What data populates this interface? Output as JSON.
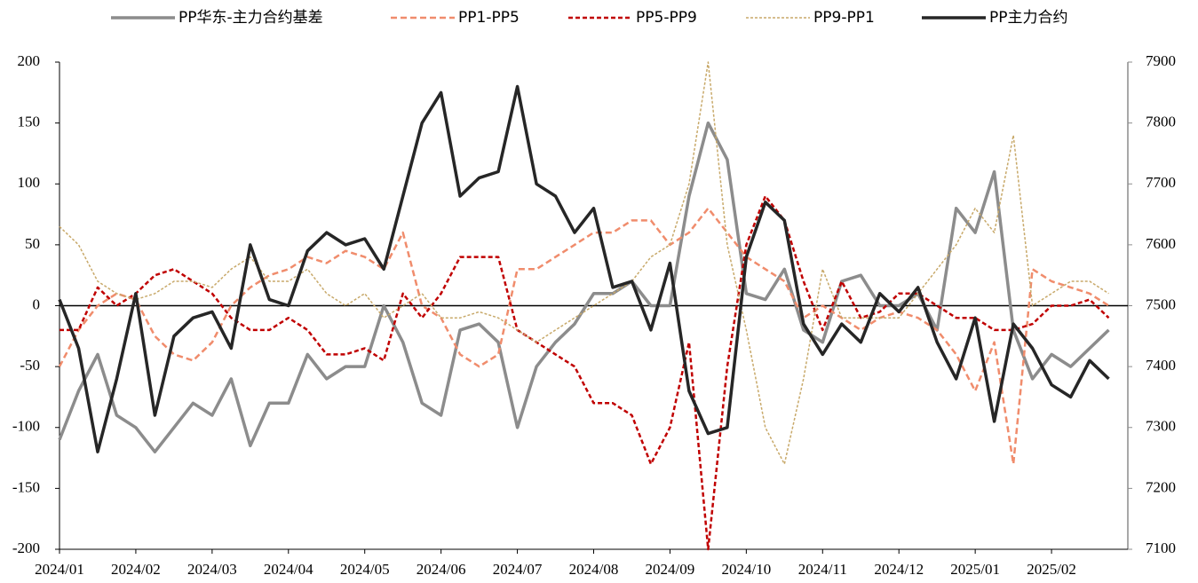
{
  "chart_data": {
    "type": "line",
    "legend": "top",
    "categories": [
      "2024/01",
      null,
      null,
      null,
      "2024/02",
      null,
      null,
      null,
      "2024/03",
      null,
      null,
      null,
      "2024/04",
      null,
      null,
      null,
      "2024/05",
      null,
      null,
      null,
      "2024/06",
      null,
      null,
      null,
      "2024/07",
      null,
      null,
      null,
      "2024/08",
      null,
      null,
      null,
      "2024/09",
      null,
      null,
      null,
      "2024/10",
      null,
      null,
      null,
      "2024/11",
      null,
      null,
      null,
      "2024/12",
      null,
      null,
      null,
      "2025/01",
      null,
      null,
      null,
      "2025/02",
      null,
      null,
      null
    ],
    "ylim": [
      -200,
      200
    ],
    "yticks": [
      -200,
      -150,
      -100,
      -50,
      0,
      50,
      100,
      150,
      200
    ],
    "y2lim": [
      7100,
      7900
    ],
    "y2ticks": [
      7100,
      7200,
      7300,
      7400,
      7500,
      7600,
      7700,
      7800,
      7900
    ],
    "series": [
      {
        "name": "PP华东-主力合约基差",
        "color": "#8c8c8c",
        "dash": "none",
        "width": 3.5,
        "values": [
          -110,
          -70,
          -40,
          -90,
          -100,
          -120,
          -100,
          -80,
          -90,
          -60,
          -115,
          -80,
          -80,
          -40,
          -60,
          -50,
          -50,
          0,
          -30,
          -80,
          -90,
          -20,
          -15,
          -30,
          -100,
          -50,
          -30,
          -15,
          10,
          10,
          20,
          0,
          0,
          90,
          150,
          120,
          10,
          5,
          30,
          -20,
          -30,
          20,
          25,
          0,
          0,
          10,
          -20,
          80,
          60,
          110,
          -20,
          -60,
          -40,
          -50,
          -35,
          -20
        ]
      },
      {
        "name": "PP1-PP5",
        "color": "#f08c6c",
        "dash": "7,4",
        "width": 2.5,
        "values": [
          -50,
          -20,
          0,
          10,
          5,
          -25,
          -40,
          -45,
          -30,
          0,
          15,
          25,
          30,
          40,
          35,
          45,
          40,
          30,
          60,
          0,
          -10,
          -40,
          -50,
          -40,
          30,
          30,
          40,
          50,
          60,
          60,
          70,
          70,
          50,
          60,
          80,
          60,
          40,
          30,
          20,
          -10,
          0,
          -10,
          -20,
          -10,
          -5,
          -10,
          -20,
          -40,
          -70,
          -30,
          -130,
          30,
          20,
          15,
          10,
          0
        ]
      },
      {
        "name": "PP5-PP9",
        "color": "#c00000",
        "dash": "5,3",
        "width": 2.5,
        "values": [
          -20,
          -20,
          15,
          0,
          10,
          25,
          30,
          20,
          10,
          -10,
          -20,
          -20,
          -10,
          -20,
          -40,
          -40,
          -35,
          -45,
          10,
          -10,
          10,
          40,
          40,
          40,
          -20,
          -30,
          -40,
          -50,
          -80,
          -80,
          -90,
          -130,
          -100,
          -30,
          -200,
          -50,
          50,
          90,
          70,
          20,
          -20,
          20,
          -10,
          -5,
          10,
          10,
          0,
          -10,
          -10,
          -20,
          -20,
          -15,
          0,
          0,
          5,
          -10
        ]
      },
      {
        "name": "PP9-PP1",
        "color": "#c8a96a",
        "dash": "3,2",
        "width": 1.5,
        "values": [
          65,
          50,
          20,
          10,
          5,
          10,
          20,
          20,
          15,
          30,
          40,
          20,
          20,
          30,
          10,
          0,
          10,
          -10,
          0,
          10,
          -10,
          -10,
          -5,
          -10,
          -20,
          -30,
          -20,
          -10,
          0,
          10,
          20,
          40,
          50,
          100,
          200,
          50,
          -20,
          -100,
          -130,
          -60,
          30,
          -10,
          -10,
          -10,
          -10,
          10,
          30,
          50,
          80,
          60,
          140,
          0,
          10,
          20,
          20,
          10
        ]
      },
      {
        "name": "PP主力合约",
        "color": "#262626",
        "dash": "none",
        "width": 3.5,
        "axis": "y2",
        "values": [
          7510,
          7430,
          7260,
          7380,
          7520,
          7320,
          7450,
          7480,
          7490,
          7430,
          7600,
          7510,
          7500,
          7590,
          7620,
          7600,
          7610,
          7560,
          7680,
          7800,
          7850,
          7680,
          7710,
          7720,
          7860,
          7700,
          7680,
          7620,
          7660,
          7530,
          7540,
          7460,
          7570,
          7360,
          7290,
          7300,
          7580,
          7670,
          7640,
          7470,
          7420,
          7470,
          7440,
          7520,
          7490,
          7530,
          7440,
          7380,
          7480,
          7310,
          7470,
          7430,
          7370,
          7350,
          7410,
          7380
        ]
      }
    ]
  }
}
